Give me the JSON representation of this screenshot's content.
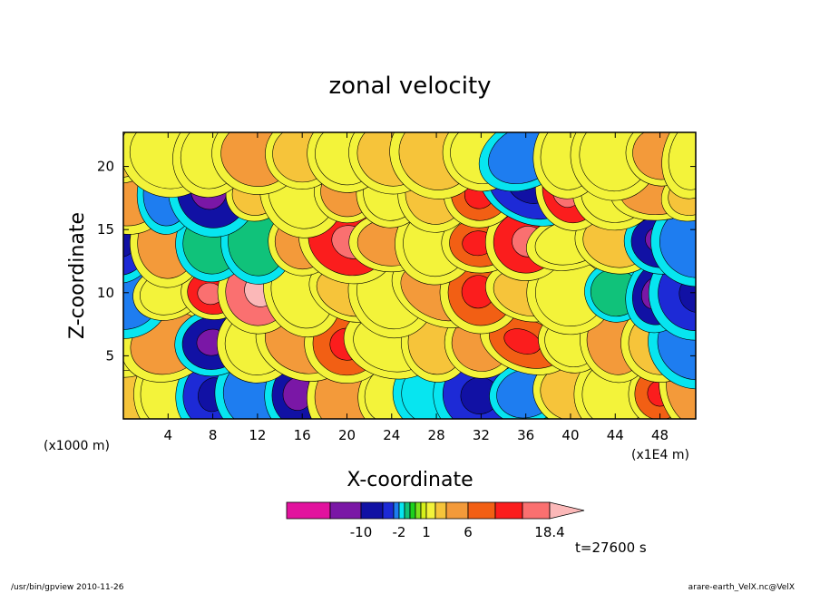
{
  "chart_data": {
    "type": "heatmap",
    "title": "zonal velocity",
    "xlabel": "X-coordinate",
    "ylabel": "Z-coordinate",
    "x_unit_left": "(x1000 m)",
    "x_unit_right": "(x1E4 m)",
    "x_ticks": [
      "4",
      "8",
      "12",
      "16",
      "20",
      "24",
      "28",
      "32",
      "36",
      "40",
      "44",
      "48"
    ],
    "x_tick_values": [
      4,
      8,
      12,
      16,
      20,
      24,
      28,
      32,
      36,
      40,
      44,
      48
    ],
    "y_ticks": [
      "5",
      "10",
      "15",
      "20"
    ],
    "y_tick_values": [
      5,
      10,
      15,
      20
    ],
    "xlim": [
      0,
      51.2
    ],
    "ylim": [
      0,
      22.7
    ],
    "grid": false,
    "colorbar": {
      "levels": [
        -18,
        -14,
        -10,
        -6,
        -3,
        -2,
        -1,
        -0.5,
        0,
        0.5,
        1,
        2,
        3,
        6,
        9,
        12,
        15,
        18.4
      ],
      "colors": [
        "#e2129e",
        "#7a17a6",
        "#1111a4",
        "#1d2ad6",
        "#1e7df0",
        "#07e5f0",
        "#10c27a",
        "#1dd11d",
        "#7ee21d",
        "#d6f01a",
        "#f3f33a",
        "#f6c43a",
        "#f39a3a",
        "#f25f14",
        "#fb1d1d",
        "#fa7070",
        "#fbb8b8"
      ],
      "labels": [
        "-10",
        "-2",
        "1",
        "6",
        "18.4"
      ],
      "label_values": [
        -10,
        -2,
        1,
        6,
        18.4
      ]
    },
    "field_samples": {
      "x": [
        0,
        4,
        8,
        12,
        16,
        20,
        24,
        28,
        32,
        36,
        40,
        44,
        48,
        51.2
      ],
      "z": [
        2,
        6,
        10,
        14,
        18,
        21
      ],
      "values": [
        [
          2,
          1,
          -6,
          -3,
          -10,
          3,
          1,
          -2,
          -6,
          -3,
          2,
          1,
          6,
          3
        ],
        [
          1,
          3,
          -10,
          1,
          3,
          6,
          1,
          2,
          3,
          6,
          1,
          3,
          2,
          -3
        ],
        [
          -3,
          1,
          9,
          12,
          1,
          2,
          1,
          3,
          6,
          2,
          1,
          -1,
          -10,
          -6
        ],
        [
          -6,
          3,
          -1,
          -1,
          3,
          9,
          3,
          1,
          6,
          9,
          1,
          2,
          -10,
          -3
        ],
        [
          3,
          -3,
          -10,
          2,
          1,
          3,
          1,
          2,
          6,
          -6,
          9,
          1,
          3,
          2
        ],
        [
          2,
          1,
          1,
          3,
          2,
          1,
          2,
          2,
          1,
          -3,
          1,
          1,
          3,
          1
        ]
      ]
    },
    "annotation": "t=27600 s"
  },
  "footer": {
    "left": "/usr/bin/gpview   2010-11-26",
    "right": "arare-earth_VelX.nc@VelX"
  },
  "fill_colors": [
    "#1dd11d",
    "#f3f33a",
    "#f6c43a",
    "#f39a3a",
    "#f25f14",
    "#07e5f0",
    "#1e7df0",
    "#1111a4",
    "#7ee21d"
  ]
}
